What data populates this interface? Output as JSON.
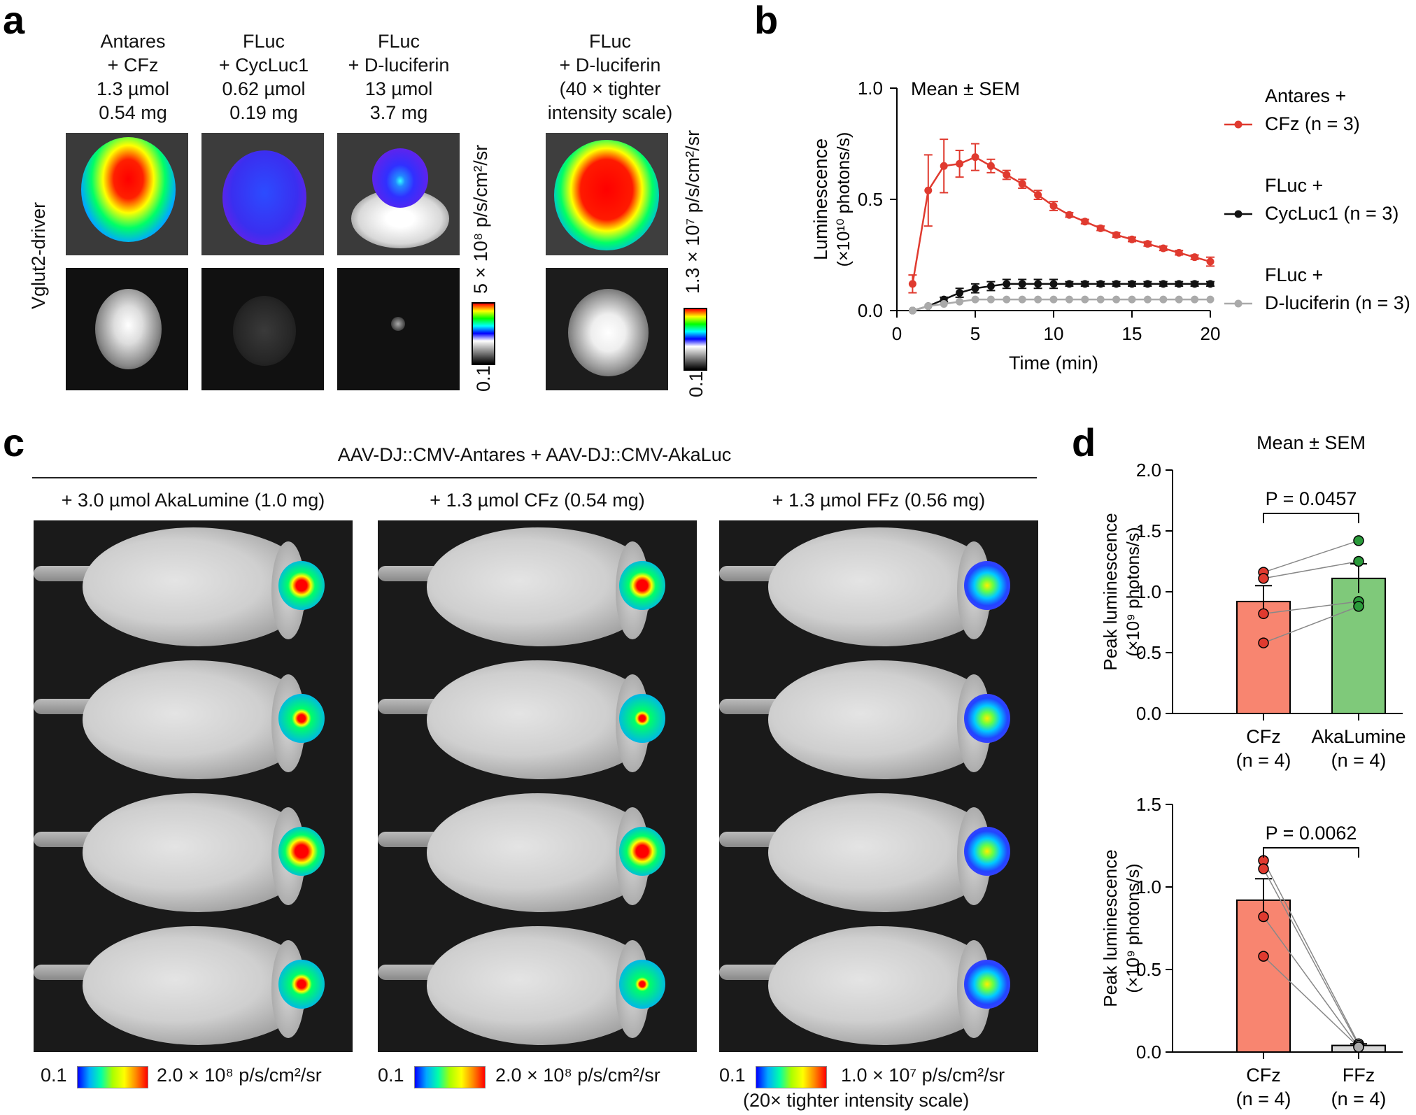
{
  "panel_a": {
    "letter": "a",
    "columns": [
      {
        "lines": [
          "Antares",
          "+ CFz",
          "1.3 µmol",
          "0.54 mg"
        ]
      },
      {
        "lines": [
          "FLuc",
          "+ CycLuc1",
          "0.62 µmol",
          "0.19 mg"
        ]
      },
      {
        "lines": [
          "FLuc",
          "+ D-luciferin",
          "13 µmol",
          "3.7 mg"
        ]
      },
      {
        "lines": [
          "FLuc",
          "+ D-luciferin",
          "(40 × tighter",
          "intensity scale)"
        ]
      }
    ],
    "row_label": "Vglut2-driver",
    "scale1_max": "5 × 10⁸ p/s/cm²/sr",
    "scale1_min": "0.1",
    "scale2_max": "1.3 × 10⁷ p/s/cm²/sr",
    "scale2_min": "0.1"
  },
  "panel_b": {
    "letter": "b",
    "chart_data": {
      "type": "line",
      "title": "Mean ± SEM",
      "xlabel": "Time (min)",
      "ylabel_line1": "Luminescence",
      "ylabel_line2": "(×10¹⁰ photons/s)",
      "xlim": [
        0,
        20
      ],
      "ylim": [
        0,
        1.0
      ],
      "xticks": [
        "0",
        "5",
        "10",
        "15",
        "20"
      ],
      "yticks": [
        "0.0",
        "0.5",
        "1.0"
      ],
      "x": [
        1,
        2,
        3,
        4,
        5,
        6,
        7,
        8,
        9,
        10,
        11,
        12,
        13,
        14,
        15,
        16,
        17,
        18,
        19,
        20
      ],
      "series": [
        {
          "name": "Antares + CFz (n = 3)",
          "legend_lines": [
            "Antares +",
            "CFz (n = 3)"
          ],
          "color": "#e03a2f",
          "values": [
            0.12,
            0.54,
            0.65,
            0.66,
            0.69,
            0.65,
            0.61,
            0.57,
            0.52,
            0.47,
            0.43,
            0.4,
            0.37,
            0.34,
            0.32,
            0.3,
            0.28,
            0.26,
            0.24,
            0.22
          ],
          "err": [
            0.04,
            0.16,
            0.12,
            0.06,
            0.06,
            0.03,
            0.02,
            0.02,
            0.02,
            0.02,
            0.01,
            0.01,
            0.01,
            0.01,
            0.01,
            0.01,
            0.01,
            0.01,
            0.01,
            0.02
          ]
        },
        {
          "name": "FLuc + CycLuc1 (n = 3)",
          "legend_lines": [
            "FLuc +",
            "CycLuc1 (n = 3)"
          ],
          "color": "#111111",
          "values": [
            0.0,
            0.02,
            0.05,
            0.08,
            0.1,
            0.11,
            0.12,
            0.12,
            0.12,
            0.12,
            0.12,
            0.12,
            0.12,
            0.12,
            0.12,
            0.12,
            0.12,
            0.12,
            0.12,
            0.12
          ],
          "err": [
            0.0,
            0.0,
            0.01,
            0.02,
            0.02,
            0.02,
            0.02,
            0.02,
            0.02,
            0.02,
            0.01,
            0.01,
            0.01,
            0.01,
            0.01,
            0.01,
            0.01,
            0.01,
            0.01,
            0.01
          ]
        },
        {
          "name": "FLuc + D-luciferin (n = 3)",
          "legend_lines": [
            "FLuc +",
            "D-luciferin (n = 3)"
          ],
          "color": "#aaaaaa",
          "values": [
            0.0,
            0.02,
            0.03,
            0.04,
            0.05,
            0.05,
            0.05,
            0.05,
            0.05,
            0.05,
            0.05,
            0.05,
            0.05,
            0.05,
            0.05,
            0.05,
            0.05,
            0.05,
            0.05,
            0.05
          ],
          "err": [
            0,
            0,
            0,
            0,
            0,
            0,
            0,
            0,
            0,
            0,
            0,
            0,
            0,
            0,
            0,
            0,
            0,
            0,
            0,
            0
          ]
        }
      ]
    }
  },
  "panel_c": {
    "letter": "c",
    "header": "AAV-DJ::CMV-Antares + AAV-DJ::CMV-AkaLuc",
    "columns": [
      {
        "label": "+ 3.0 µmol AkaLumine (1.0 mg)",
        "scale_min": "0.1",
        "scale_max": "2.0  × 10⁸ p/s/cm²/sr"
      },
      {
        "label": "+ 1.3 µmol CFz (0.54 mg)",
        "scale_min": "0.1",
        "scale_max": "2.0  × 10⁸ p/s/cm²/sr"
      },
      {
        "label": "+ 1.3 µmol FFz (0.56 mg)",
        "scale_min": "0.1",
        "scale_max": "1.0  × 10⁷ p/s/cm²/sr",
        "note": "(20× tighter intensity scale)"
      }
    ]
  },
  "panel_d": {
    "letter": "d",
    "chart_data": [
      {
        "type": "bar",
        "title": "Mean ± SEM",
        "ylabel_line1": "Peak luminescence",
        "ylabel_line2": "(×10⁹ photons/s)",
        "ylim": [
          0,
          2.0
        ],
        "yticks": [
          "0.0",
          "0.5",
          "1.0",
          "1.5",
          "2.0"
        ],
        "categories": [
          "CFz",
          "AkaLumine"
        ],
        "category_n": [
          "(n = 4)",
          "(n = 4)"
        ],
        "colors": [
          "#f88570",
          "#7fc97a"
        ],
        "dot_colors": [
          "#e03a2f",
          "#2a9a3a"
        ],
        "values": [
          0.92,
          1.11
        ],
        "err": [
          0.13,
          0.12
        ],
        "points": [
          [
            1.16,
            1.11,
            0.82,
            0.58
          ],
          [
            1.42,
            1.25,
            0.92,
            0.88
          ]
        ],
        "p_value": "P = 0.0457"
      },
      {
        "type": "bar",
        "ylabel_line1": "Peak luminescence",
        "ylabel_line2": "(×10⁹ photons/s)",
        "ylim": [
          0,
          1.5
        ],
        "yticks": [
          "0.0",
          "0.5",
          "1.0",
          "1.5"
        ],
        "categories": [
          "CFz",
          "FFz"
        ],
        "category_n": [
          "(n = 4)",
          "(n = 4)"
        ],
        "colors": [
          "#f88570",
          "#d9d9d9"
        ],
        "dot_colors": [
          "#e03a2f",
          "#aaaaaa"
        ],
        "values": [
          0.92,
          0.04
        ],
        "err": [
          0.13,
          0.01
        ],
        "points": [
          [
            1.16,
            1.11,
            0.82,
            0.58
          ],
          [
            0.05,
            0.04,
            0.03,
            0.03
          ]
        ],
        "p_value": "P = 0.0062"
      }
    ]
  }
}
